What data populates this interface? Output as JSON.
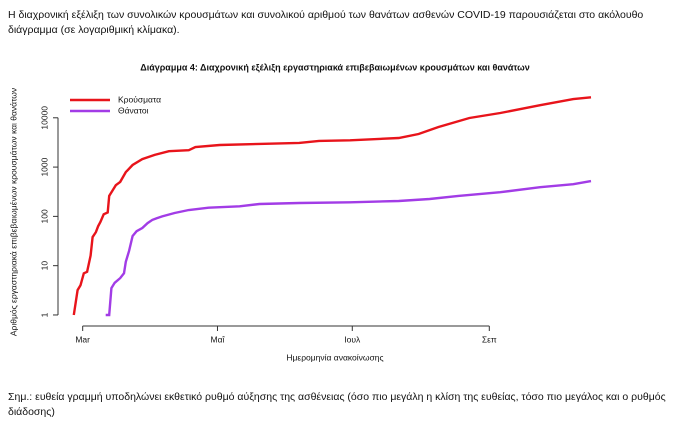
{
  "intro": "Η διαχρονική εξέλιξη των συνολικών κρουσμάτων και συνολικού αριθμού των θανάτων ασθενών COVID-19 παρουσιάζεται στο ακόλουθο διάγραμμα (σε λογαριθμική κλίμακα).",
  "note": "Σημ.: ευθεία γραμμή υποδηλώνει εκθετικό ρυθμό αύξησης της ασθένειας (όσο πιο μεγάλη η κλίση της ευθείας, τόσο πιο μεγάλος και ο ρυθμός διάδοσης)",
  "chart_data": {
    "type": "line",
    "title": "Διάγραμμα 4: Διαχρονική εξέλιξη εργαστηριακά επιβεβαιωμένων κρουσμάτων και θανάτων",
    "x_label": "Ημερομηνία ανακοίνωσης",
    "y_label": "Αριθμός εργαστηριακά επιβεβαιωμένων κρουσμάτων και θανάτων",
    "log_y": true,
    "legend": "top-left",
    "xlim": [
      -8,
      235
    ],
    "xticks": [
      {
        "value": 0,
        "label": "Mar"
      },
      {
        "value": 61,
        "label": "Μαΐ"
      },
      {
        "value": 122,
        "label": "Ιουλ"
      },
      {
        "value": 184,
        "label": "Σεπ"
      }
    ],
    "ylim": [
      0.72,
      29000
    ],
    "yticks": [
      1,
      10,
      100,
      1000,
      10000
    ],
    "series": [
      {
        "name": "Κρούσματα",
        "color": "#e8141b",
        "x": [
          -4,
          -2.3,
          -1,
          0.5,
          2,
          3.6,
          4.5,
          6,
          7,
          8,
          9.5,
          11.3,
          12,
          13.6,
          15,
          17,
          19.5,
          22.6,
          27,
          32.6,
          39,
          48,
          51,
          62,
          80,
          98,
          107,
          121,
          143,
          152,
          161,
          175,
          189,
          207,
          222,
          230
        ],
        "values": [
          1,
          3.2,
          4,
          7,
          7.5,
          16,
          38,
          48,
          63,
          77,
          110,
          120,
          260,
          340,
          430,
          500,
          790,
          1100,
          1450,
          1770,
          2100,
          2200,
          2550,
          2800,
          2950,
          3100,
          3400,
          3500,
          3900,
          4700,
          6500,
          9900,
          12500,
          18000,
          24000,
          26000
        ]
      },
      {
        "name": "Θάνατοι",
        "color": "#a23ce6",
        "x": [
          10.4,
          12,
          13,
          14.5,
          17,
          18.7,
          19.5,
          21,
          22.6,
          24.4,
          27,
          29.4,
          31.5,
          33.5,
          36,
          41.6,
          48,
          57,
          71,
          80,
          98,
          121,
          143,
          157,
          170,
          189,
          207,
          222,
          230
        ],
        "values": [
          1,
          1,
          3.5,
          4.5,
          5.6,
          7,
          12,
          20,
          40,
          50,
          58,
          73,
          85,
          92,
          100,
          117,
          135,
          150,
          160,
          178,
          187,
          193,
          205,
          225,
          260,
          310,
          390,
          450,
          520
        ]
      }
    ]
  }
}
